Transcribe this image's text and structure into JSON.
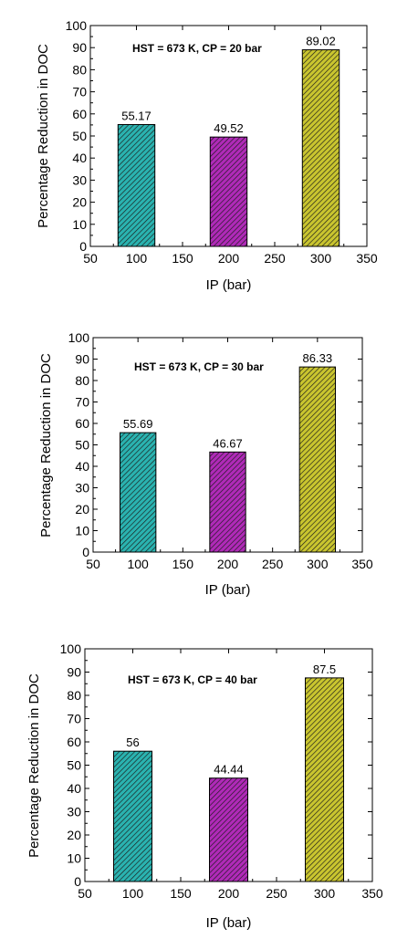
{
  "chart_data": [
    {
      "type": "bar",
      "annotation": "HST = 673 K, CP = 20 bar",
      "xlabel": "IP (bar)",
      "ylabel": "Percentage Reduction in DOC",
      "xlim": [
        50,
        350
      ],
      "ylim": [
        0,
        100
      ],
      "xticks": [
        50,
        100,
        150,
        200,
        250,
        300,
        350
      ],
      "yticks": [
        0,
        10,
        20,
        30,
        40,
        50,
        60,
        70,
        80,
        90,
        100
      ],
      "x": [
        100,
        200,
        300
      ],
      "values": [
        55.17,
        49.52,
        89.02
      ],
      "value_labels": [
        "55.17",
        "49.52",
        "89.02"
      ],
      "bar_colors": [
        "#2ab3b0",
        "#b02ab8",
        "#c9c52f"
      ],
      "hatch": "diagonal"
    },
    {
      "type": "bar",
      "annotation": "HST = 673 K, CP = 30 bar",
      "xlabel": "IP (bar)",
      "ylabel": "Percentage Reduction in DOC",
      "xlim": [
        50,
        350
      ],
      "ylim": [
        0,
        100
      ],
      "xticks": [
        50,
        100,
        150,
        200,
        250,
        300,
        350
      ],
      "yticks": [
        0,
        10,
        20,
        30,
        40,
        50,
        60,
        70,
        80,
        90,
        100
      ],
      "x": [
        100,
        200,
        300
      ],
      "values": [
        55.69,
        46.67,
        86.33
      ],
      "value_labels": [
        "55.69",
        "46.67",
        "86.33"
      ],
      "bar_colors": [
        "#2ab3b0",
        "#b02ab8",
        "#c9c52f"
      ],
      "hatch": "diagonal"
    },
    {
      "type": "bar",
      "annotation": "HST = 673 K, CP = 40 bar",
      "xlabel": "IP (bar)",
      "ylabel": "Percentage Reduction in DOC",
      "xlim": [
        50,
        350
      ],
      "ylim": [
        0,
        100
      ],
      "xticks": [
        50,
        100,
        150,
        200,
        250,
        300,
        350
      ],
      "yticks": [
        0,
        10,
        20,
        30,
        40,
        50,
        60,
        70,
        80,
        90,
        100
      ],
      "x": [
        100,
        200,
        300
      ],
      "values": [
        56,
        44.44,
        87.5
      ],
      "value_labels": [
        "56",
        "44.44",
        "87.5"
      ],
      "bar_colors": [
        "#2ab3b0",
        "#b02ab8",
        "#c9c52f"
      ],
      "hatch": "diagonal"
    }
  ]
}
